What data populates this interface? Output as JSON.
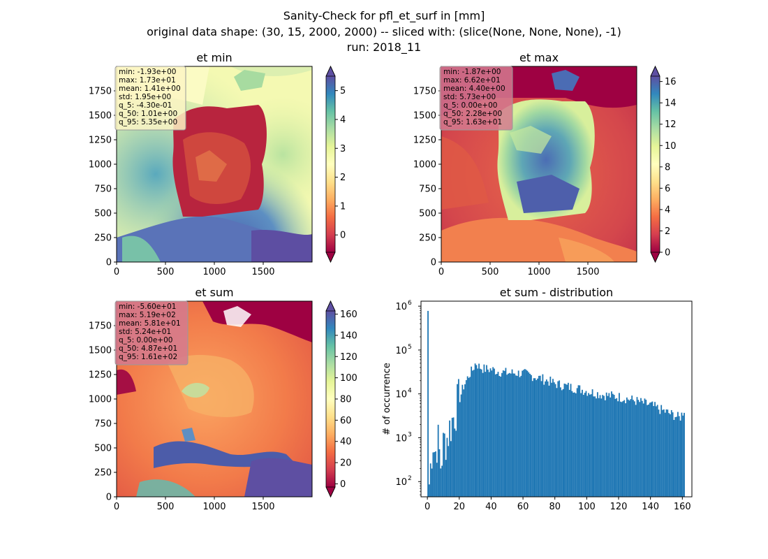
{
  "suptitle": {
    "line1": "Sanity-Check for pfl_et_surf in [mm]",
    "line2": "original data shape: (30, 15, 2000, 2000) -- sliced with: (slice(None, None, None), -1)",
    "line3": "run: 2018_11"
  },
  "colors": {
    "colormap": "Spectral",
    "hist_bar": "#1f77b4",
    "stats_box_min": "#fbf4c4",
    "stats_box_max": "#d37a8f",
    "stats_box_sum": "#d37a8f"
  },
  "chart_data": [
    {
      "type": "heatmap",
      "title": "et min",
      "xticks": [
        0,
        500,
        1000,
        1500
      ],
      "yticks": [
        0,
        250,
        500,
        750,
        1000,
        1250,
        1500,
        1750
      ],
      "xlim": [
        0,
        2000
      ],
      "ylim": [
        0,
        2000
      ],
      "colorbar": {
        "min": -0.6,
        "max": 5.5,
        "ticks": [
          0,
          1,
          2,
          3,
          4,
          5
        ],
        "extend": "both"
      },
      "stats": [
        "min: -1.93e+00",
        "max: 1.73e+01",
        "mean: 1.41e+00",
        "std: 1.95e+00",
        "q_5: -4.30e-01",
        "q_50: 1.01e+00",
        "q_95: 5.35e+00"
      ]
    },
    {
      "type": "heatmap",
      "title": "et max",
      "xticks": [
        0,
        500,
        1000,
        1500
      ],
      "yticks": [
        0,
        250,
        500,
        750,
        1000,
        1250,
        1500,
        1750
      ],
      "xlim": [
        0,
        2000
      ],
      "ylim": [
        0,
        2000
      ],
      "colorbar": {
        "min": 0,
        "max": 16.5,
        "ticks": [
          0,
          2,
          4,
          6,
          8,
          10,
          12,
          14,
          16
        ],
        "extend": "both"
      },
      "stats": [
        "min: -1.87e+00",
        "max: 6.62e+01",
        "mean: 4.40e+00",
        "std: 5.73e+00",
        "q_5: 0.00e+00",
        "q_50: 2.28e+00",
        "q_95: 1.63e+01"
      ]
    },
    {
      "type": "heatmap",
      "title": "et sum",
      "xticks": [
        0,
        500,
        1000,
        1500
      ],
      "yticks": [
        0,
        250,
        500,
        750,
        1000,
        1250,
        1500,
        1750
      ],
      "xlim": [
        0,
        2000
      ],
      "ylim": [
        0,
        2000
      ],
      "colorbar": {
        "min": -3,
        "max": 163,
        "ticks": [
          0,
          20,
          40,
          60,
          80,
          100,
          120,
          140,
          160
        ],
        "extend": "both"
      },
      "stats": [
        "min: -5.60e+01",
        "max: 5.19e+02",
        "mean: 5.81e+01",
        "std: 5.24e+01",
        "q_5: 0.00e+00",
        "q_50: 4.87e+01",
        "q_95: 1.61e+02"
      ]
    },
    {
      "type": "bar",
      "title": "et sum - distribution",
      "ylabel": "# of occurrence",
      "yscale": "log",
      "xlim": [
        -4,
        166
      ],
      "ylim": [
        45,
        1300000
      ],
      "xticks": [
        0,
        20,
        40,
        60,
        80,
        100,
        120,
        140,
        160
      ],
      "yticks": [
        100,
        1000,
        10000,
        100000,
        1000000
      ],
      "ytick_labels": [
        "10",
        "10",
        "10",
        "10",
        "10"
      ],
      "ytick_exponents": [
        "2",
        "3",
        "4",
        "5",
        "6"
      ],
      "bin_width": 0.8,
      "anchors": [
        [
          0,
          780000
        ],
        [
          0.6,
          70
        ],
        [
          1.5,
          200
        ],
        [
          3,
          1000
        ],
        [
          4.5,
          400
        ],
        [
          6,
          1000
        ],
        [
          8,
          250
        ],
        [
          10,
          800
        ],
        [
          12,
          1000
        ],
        [
          14,
          1800
        ],
        [
          16,
          3000
        ],
        [
          18,
          5000
        ],
        [
          20,
          8000
        ],
        [
          22,
          14000
        ],
        [
          24,
          20000
        ],
        [
          26,
          28000
        ],
        [
          28,
          35000
        ],
        [
          30,
          52000
        ],
        [
          32,
          42000
        ],
        [
          35,
          37000
        ],
        [
          40,
          36000
        ],
        [
          45,
          32000
        ],
        [
          50,
          30000
        ],
        [
          55,
          30000
        ],
        [
          60,
          29000
        ],
        [
          65,
          26000
        ],
        [
          70,
          23000
        ],
        [
          75,
          20000
        ],
        [
          80,
          17000
        ],
        [
          85,
          15500
        ],
        [
          90,
          14000
        ],
        [
          95,
          13000
        ],
        [
          100,
          11500
        ],
        [
          105,
          10500
        ],
        [
          110,
          9500
        ],
        [
          115,
          9000
        ],
        [
          120,
          8500
        ],
        [
          125,
          7800
        ],
        [
          130,
          7000
        ],
        [
          135,
          6200
        ],
        [
          140,
          5500
        ],
        [
          145,
          4500
        ],
        [
          150,
          3800
        ],
        [
          155,
          3200
        ],
        [
          158,
          2800
        ],
        [
          161,
          4500
        ]
      ]
    }
  ]
}
